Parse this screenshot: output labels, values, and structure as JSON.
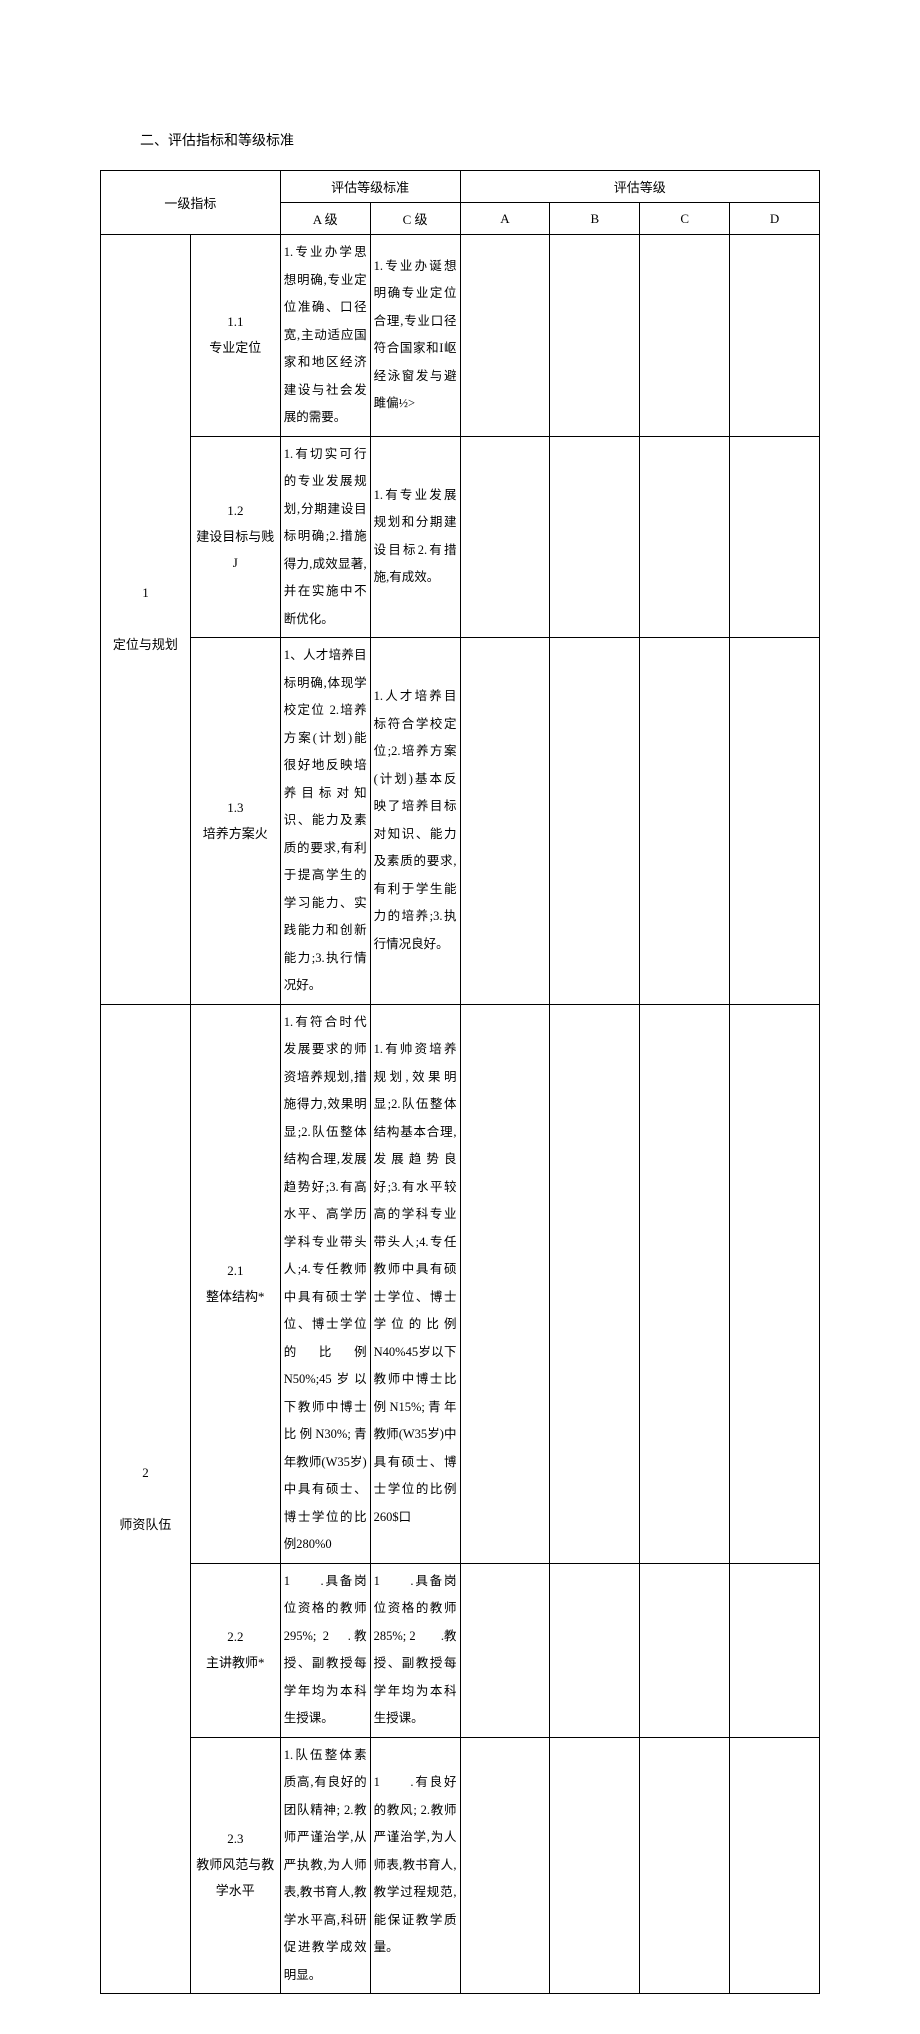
{
  "title": "二、评估指标和等级标准",
  "headers": {
    "primary": "一级指标",
    "standards": "评估等级标准",
    "grades": "评估等级",
    "levelA": "A 级",
    "levelC": "C 级",
    "gA": "A",
    "gB": "B",
    "gC": "C",
    "gD": "D"
  },
  "rows": [
    {
      "cat_num": "1",
      "cat_name": "定位与规划",
      "subs": [
        {
          "num": "1.1",
          "name": "专业定位",
          "a": "1.专业办学思想明确,专业定位准确、口径宽,主动适应国家和地区经济建设与社会发展的需要。",
          "c": "1.专业办诞想明确专业定位合理,专业口径符合国家和I岖经泳窗发与避雎偏½>"
        },
        {
          "num": "1.2",
          "name": "建设目标与贱J",
          "a": "1.有切实可行的专业发展规划,分期建设目标明确;2.措施得力,成效显著,并在实施中不断优化。",
          "c": "1.有专业发展规划和分期建设目标2.有措施,有成效。"
        },
        {
          "num": "1.3",
          "name": "培养方案火",
          "a": "1、人才培养目标明确,体现学校定位 2.培养方案(计划)能很好地反映培养目标对知识、能力及素质的要求,有利于提高学生的学习能力、实践能力和创新能力;3.执行情况好。",
          "c": "1.人才培养目标符合学校定位;2.培养方案(计划)基本反映了培养目标对知识、能力及素质的要求,有利于学生能力的培养;3.执行情况良好。"
        }
      ]
    },
    {
      "cat_num": "2",
      "cat_name": "师资队伍",
      "subs": [
        {
          "num": "2.1",
          "name": "整体结构*",
          "a": "1.有符合时代发展要求的师资培养规划,措施得力,效果明显;2.队伍整体结构合理,发展趋势好;3.有高水平、高学历学科专业带头人;4.专任教师中具有硕士学位、博士学位的比例N50%;45岁以下教师中博士比例N30%;青年教师(W35岁)中具有硕士、博士学位的比例280%0",
          "c": "1.有帅资培养规划,效果明显;2.队伍整体结构基本合理,发展趋势良好;3.有水平较高的学科专业带头人;4.专任教师中具有硕士学位、博士学位的比例N40%45岁以下教师中博士比例N15%;青年教师(W35岁)中具有硕士、博士学位的比例260$口"
        },
        {
          "num": "2.2",
          "name": "主讲教师*",
          "a": "1　　.具备岗位资格的教师295%;\n2　.教授、副教授每学年均为本科生授课。",
          "c": "1　　.具备岗位资格的教师285%;\n2　　.教授、副教授每学年均为本科生授课。"
        },
        {
          "num": "2.3",
          "name": "教师风范与教学水平",
          "a": "1.队伍整体素质高,有良好的团队精神;\n2.教师严谨治学,从严执教,为人师表,教书育人,教学水平高,科研促进教学成效明显。",
          "c": "1　　.有良好的教风;\n2.教师严谨治学,为人师表,教书育人,教学过程规范,能保证教学质量。"
        }
      ]
    }
  ],
  "style": {
    "font_size": 13,
    "line_height": 2.2,
    "border_color": "#000000",
    "bg_color": "#ffffff",
    "text_color": "#000000"
  }
}
